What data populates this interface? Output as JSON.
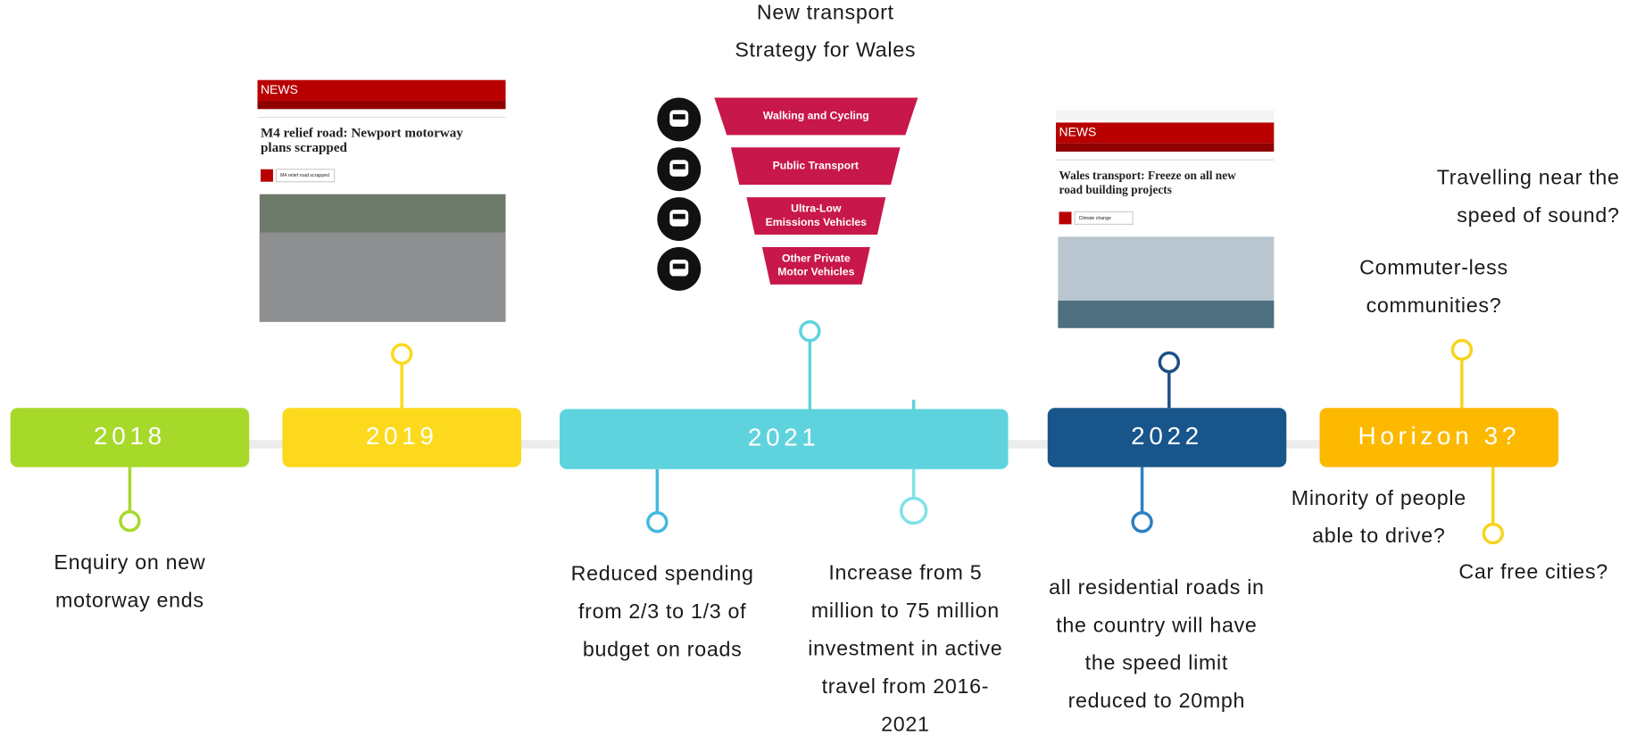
{
  "timeline": [
    {
      "year": "2018",
      "notes": [
        [
          "Enquiry on new",
          "motorway ends"
        ]
      ]
    },
    {
      "year": "2019",
      "notes": []
    },
    {
      "year": "2021",
      "notes": [
        [
          "Reduced spending",
          "from 2/3 to 1/3 of",
          "budget on roads"
        ],
        [
          "Increase from 5",
          "million to 75 million",
          "investment in active",
          "travel from 2016-",
          "2021"
        ]
      ]
    },
    {
      "year": "2022",
      "notes": [
        [
          "all residential roads in",
          "the country will have",
          "the speed limit",
          "reduced to 20mph"
        ]
      ]
    },
    {
      "year": "Horizon 3?",
      "notes": [
        [
          "Travelling near the",
          "speed of sound?"
        ],
        [
          "Commuter-less",
          "communities?"
        ],
        [
          "Minority of people",
          "able to drive?"
        ],
        [
          "Car free cities?"
        ]
      ]
    }
  ],
  "strategy": {
    "title": [
      "New transport",
      "Strategy for Wales"
    ],
    "levels": [
      [
        "Walking and Cycling"
      ],
      [
        "Public Transport"
      ],
      [
        "Ultra-Low",
        "Emissions Vehicles"
      ],
      [
        "Other Private",
        "Motor Vehicles"
      ]
    ]
  },
  "news": [
    {
      "brand": "NEWS",
      "headline": [
        "M4 relief road: Newport motorway",
        "plans scrapped"
      ],
      "tag": "M4 relief road scrapped"
    },
    {
      "brand": "NEWS",
      "headline": [
        "Wales transport: Freeze on all new",
        "road building projects"
      ],
      "tag": "Climate change"
    }
  ]
}
